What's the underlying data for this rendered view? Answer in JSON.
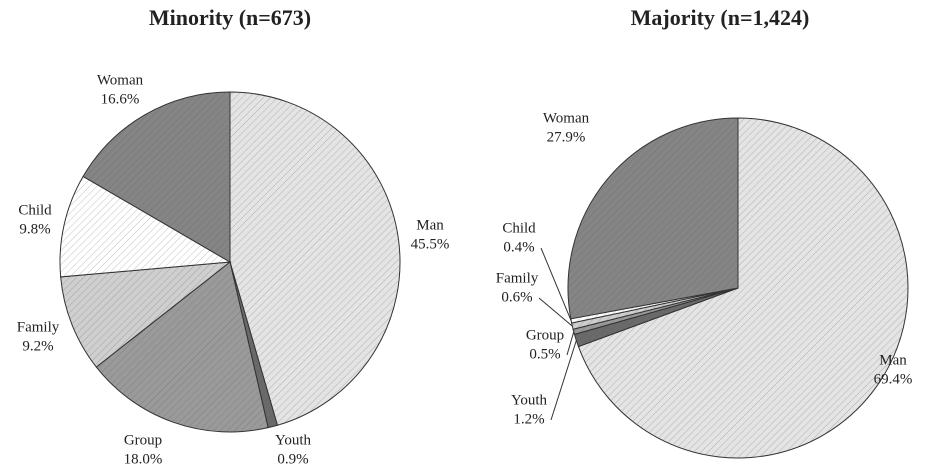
{
  "chart_data": [
    {
      "type": "pie",
      "title": "Minority (n=673)",
      "categories": [
        "Man",
        "Youth",
        "Group",
        "Family",
        "Child",
        "Woman"
      ],
      "values": [
        45.5,
        0.9,
        18.0,
        9.2,
        9.8,
        16.6
      ],
      "value_labels": [
        "45.5%",
        "0.9%",
        "18.0%",
        "9.2%",
        "9.8%",
        "16.6%"
      ],
      "colors": [
        "#e4e4e4",
        "#6a6a6a",
        "#9a9a9a",
        "#cfcfcf",
        "#ffffff",
        "#858585"
      ]
    },
    {
      "type": "pie",
      "title": "Majority (n=1,424)",
      "categories": [
        "Man",
        "Youth",
        "Group",
        "Family",
        "Child",
        "Woman"
      ],
      "values": [
        69.4,
        1.2,
        0.5,
        0.6,
        0.4,
        27.9
      ],
      "value_labels": [
        "69.4%",
        "1.2%",
        "0.5%",
        "0.6%",
        "0.4%",
        "27.9%"
      ],
      "colors": [
        "#e4e4e4",
        "#6a6a6a",
        "#9a9a9a",
        "#cfcfcf",
        "#ffffff",
        "#858585"
      ]
    }
  ]
}
